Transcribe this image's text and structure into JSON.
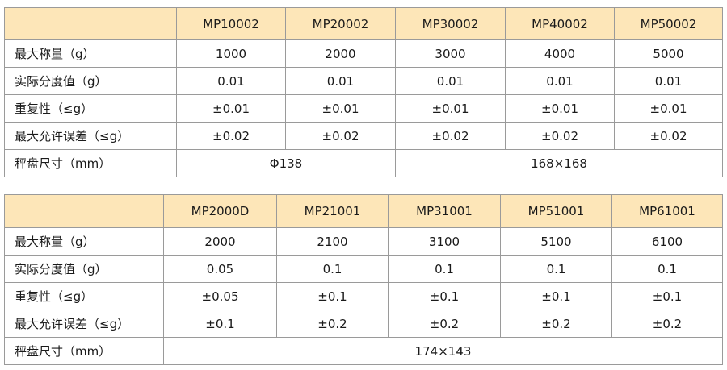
{
  "table1": {
    "models": [
      "MP10002",
      "MP20002",
      "MP30002",
      "MP40002",
      "MP50002"
    ],
    "rows": [
      {
        "label": "最大称量（g）",
        "values": [
          "1000",
          "2000",
          "3000",
          "4000",
          "5000"
        ]
      },
      {
        "label": "实际分度值（g）",
        "values": [
          "0.01",
          "0.01",
          "0.01",
          "0.01",
          "0.01"
        ]
      },
      {
        "label": "重复性（≤g）",
        "values": [
          "±0.01",
          "±0.01",
          "±0.01",
          "±0.01",
          "±0.01"
        ]
      },
      {
        "label": "最大允许误差（≤g）",
        "values": [
          "±0.02",
          "±0.02",
          "±0.02",
          "±0.02",
          "±0.02"
        ]
      }
    ],
    "pan": {
      "label": "秤盘尺寸（mm）",
      "value_a": "Φ138",
      "value_b": "168×168"
    }
  },
  "table2": {
    "models": [
      "MP2000D",
      "MP21001",
      "MP31001",
      "MP51001",
      "MP61001"
    ],
    "rows": [
      {
        "label": "最大称量（g）",
        "values": [
          "2000",
          "2100",
          "3100",
          "5100",
          "6100"
        ]
      },
      {
        "label": "实际分度值（g）",
        "values": [
          "0.05",
          "0.1",
          "0.1",
          "0.1",
          "0.1"
        ]
      },
      {
        "label": "重复性（≤g）",
        "values": [
          "±0.05",
          "±0.1",
          "±0.1",
          "±0.1",
          "±0.1"
        ]
      },
      {
        "label": "最大允许误差（≤g）",
        "values": [
          "±0.1",
          "±0.2",
          "±0.2",
          "±0.2",
          "±0.2"
        ]
      }
    ],
    "pan": {
      "label": "秤盘尺寸（mm）",
      "value": "174×143"
    }
  },
  "colors": {
    "header_background": "#fde6b8",
    "border": "#9a9a9a"
  }
}
